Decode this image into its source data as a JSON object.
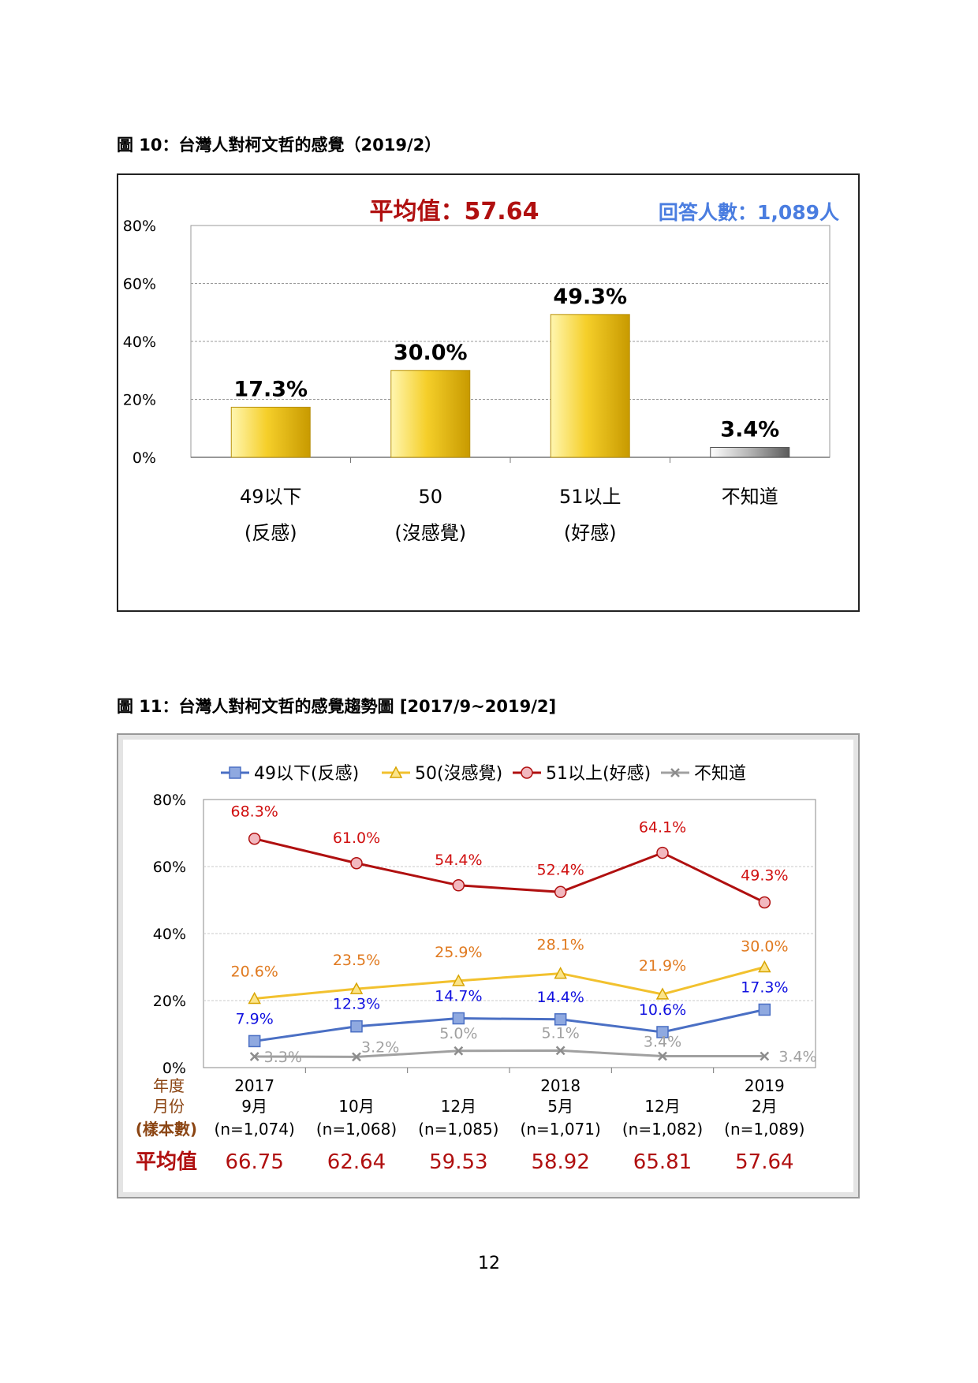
{
  "page_number": "12",
  "figure10": {
    "title": "圖 10：台灣人對柯文哲的感覺（2019/2）",
    "mean_text": "平均值：57.64",
    "respondents_text": "回答人數：1,089人",
    "colors": {
      "bar": "#f0c419",
      "bar_dk": "#8a8a8a",
      "mean": "#b01010",
      "respondents": "#4a7de0"
    }
  },
  "figure11": {
    "title": "圖 11：台灣人對柯文哲的感覺趨勢圖 [2017/9~2019/2]",
    "row_labels": {
      "year": "年度",
      "month": "月份",
      "sample": "(樣本數)",
      "mean": "平均值"
    },
    "years": [
      "2017",
      "",
      "",
      "2018",
      "",
      "2019"
    ],
    "months": [
      "9月",
      "10月",
      "12月",
      "5月",
      "12月",
      "2月"
    ],
    "samples": [
      "(n=1,074)",
      "(n=1,068)",
      "(n=1,085)",
      "(n=1,071)",
      "(n=1,082)",
      "(n=1,089)"
    ],
    "means": [
      "66.75",
      "62.64",
      "59.53",
      "58.92",
      "65.81",
      "57.64"
    ],
    "colors": {
      "blue": "#4a6fc4",
      "yellow": "#f2c12e",
      "red": "#b01010",
      "gray": "#a0a0a0",
      "label_blue": "#1010e0",
      "label_orange": "#e07a20",
      "label_red": "#d01010",
      "label_gray": "#a0a0a0",
      "row_brown": "#8b4513",
      "mean": "#b01010"
    }
  },
  "chart_data": [
    {
      "type": "bar",
      "title": "",
      "categories": [
        [
          "49以下",
          "(反感)"
        ],
        [
          "50",
          "(沒感覺)"
        ],
        [
          "51以上",
          "(好感)"
        ],
        [
          "不知道",
          ""
        ]
      ],
      "values": [
        17.3,
        30.0,
        49.3,
        3.4
      ],
      "data_labels": [
        "17.3%",
        "30.0%",
        "49.3%",
        "3.4%"
      ],
      "yticks": [
        "0%",
        "20%",
        "40%",
        "60%",
        "80%"
      ],
      "ylim": [
        0,
        80
      ],
      "grid": true
    },
    {
      "type": "line",
      "title": "",
      "x": [
        "2017/9",
        "2017/10",
        "2017/12",
        "2018/5",
        "2018/12",
        "2019/2"
      ],
      "yticks": [
        "0%",
        "20%",
        "40%",
        "60%",
        "80%"
      ],
      "ylim": [
        0,
        80
      ],
      "grid": true,
      "legend_position": "top",
      "series": [
        {
          "name": "49以下(反感)",
          "values": [
            7.9,
            12.3,
            14.7,
            14.4,
            10.6,
            17.3
          ],
          "labels": [
            "7.9%",
            "12.3%",
            "14.7%",
            "14.4%",
            "10.6%",
            "17.3%"
          ]
        },
        {
          "name": "50(沒感覺)",
          "values": [
            20.6,
            23.5,
            25.9,
            28.1,
            21.9,
            30.0
          ],
          "labels": [
            "20.6%",
            "23.5%",
            "25.9%",
            "28.1%",
            "21.9%",
            "30.0%"
          ]
        },
        {
          "name": "51以上(好感)",
          "values": [
            68.3,
            61.0,
            54.4,
            52.4,
            64.1,
            49.3
          ],
          "labels": [
            "68.3%",
            "61.0%",
            "54.4%",
            "52.4%",
            "64.1%",
            "49.3%"
          ]
        },
        {
          "name": "不知道",
          "values": [
            3.3,
            3.2,
            5.0,
            5.1,
            3.4,
            3.4
          ],
          "labels": [
            "3.3%",
            "3.2%",
            "5.0%",
            "5.1%",
            "3.4%",
            "3.4%"
          ]
        }
      ]
    }
  ]
}
